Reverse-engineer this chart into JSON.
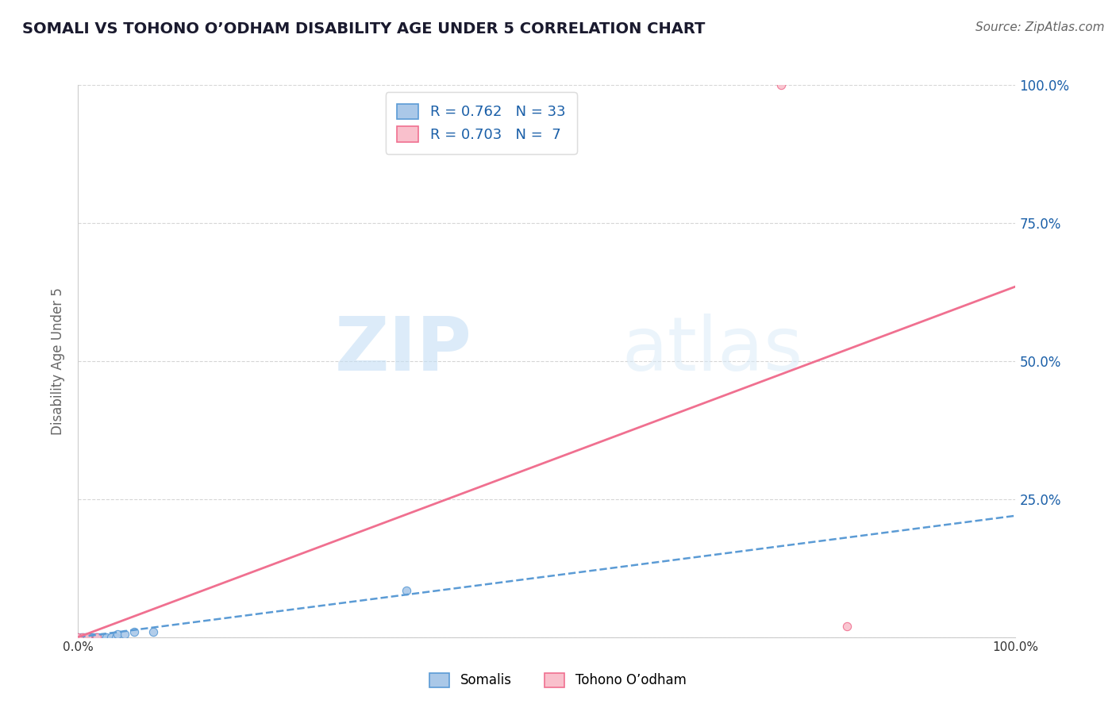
{
  "title": "SOMALI VS TOHONO O’ODHAM DISABILITY AGE UNDER 5 CORRELATION CHART",
  "source": "Source: ZipAtlas.com",
  "ylabel": "Disability Age Under 5",
  "xlim": [
    0.0,
    1.0
  ],
  "ylim": [
    0.0,
    1.0
  ],
  "watermark_zip": "ZIP",
  "watermark_atlas": "atlas",
  "legend_labels_bottom": [
    "Somalis",
    "Tohono O’odham"
  ],
  "somali_scatter_x": [
    0.0,
    0.003,
    0.005,
    0.006,
    0.008,
    0.009,
    0.01,
    0.011,
    0.012,
    0.013,
    0.014,
    0.015,
    0.016,
    0.018,
    0.019,
    0.02,
    0.022,
    0.025,
    0.028,
    0.03,
    0.035,
    0.04,
    0.042,
    0.05,
    0.06,
    0.08,
    0.35
  ],
  "somali_scatter_y": [
    0.0,
    0.0,
    0.0,
    0.0,
    0.0,
    0.0,
    0.0,
    0.0,
    0.0,
    0.0,
    0.0,
    0.0,
    0.0,
    0.0,
    0.0,
    0.0,
    0.0,
    0.0,
    0.0,
    0.0,
    0.0,
    0.0,
    0.005,
    0.005,
    0.01,
    0.01,
    0.085
  ],
  "tohono_scatter_x": [
    0.0,
    0.005,
    0.01,
    0.02,
    0.82,
    0.75
  ],
  "tohono_scatter_y": [
    0.0,
    0.0,
    0.0,
    0.0,
    0.02,
    1.0
  ],
  "somali_line_x": [
    0.0,
    1.0
  ],
  "somali_line_y": [
    0.0,
    0.22
  ],
  "tohono_line_x": [
    0.0,
    1.0
  ],
  "tohono_line_y": [
    0.0,
    0.635
  ],
  "somali_color": "#5b9bd5",
  "tohono_color": "#f07090",
  "somali_scatter_color": "#aac8e8",
  "tohono_scatter_color": "#f9c0cc",
  "grid_color": "#cccccc",
  "background_color": "#ffffff",
  "title_color": "#1a1a2e",
  "right_tick_color": "#1a5fa8",
  "ylabel_color": "#666666",
  "source_color": "#666666",
  "legend_text_color": "#1a5fa8",
  "legend_R_color": "#1a5fa8",
  "legend_N_color": "#cc2222"
}
